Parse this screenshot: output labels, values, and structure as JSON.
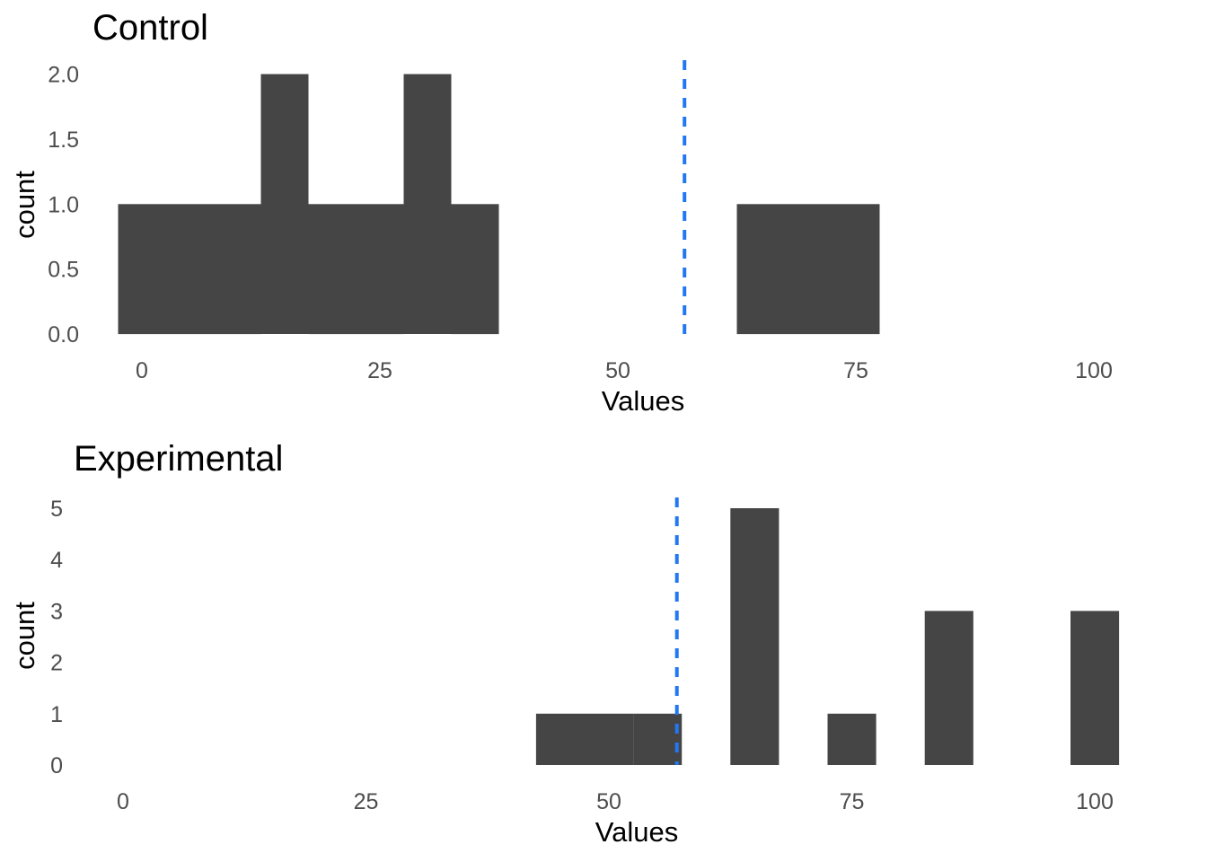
{
  "figure": {
    "background_color": "#FFFFFF",
    "bar_color": "#454545",
    "tick_label_color": "#4D4D4D",
    "title_color": "#000000",
    "vline_color": "#2277F2"
  },
  "chart_data": [
    {
      "type": "bar",
      "subtype": "histogram",
      "title": "Control",
      "xlabel": "Values",
      "ylabel": "count",
      "binwidth": 5,
      "bin_centers": [
        0,
        5,
        10,
        15,
        20,
        25,
        30,
        35,
        65,
        70,
        75
      ],
      "counts": [
        1,
        1,
        1,
        2,
        1,
        1,
        2,
        1,
        1,
        1,
        1
      ],
      "x_tick_labels": [
        "0",
        "25",
        "50",
        "75",
        "100"
      ],
      "x_tick_values": [
        0,
        25,
        50,
        75,
        100
      ],
      "y_tick_labels": [
        "0.0",
        "0.5",
        "1.0",
        "1.5",
        "2.0"
      ],
      "y_tick_values": [
        0,
        0.5,
        1,
        1.5,
        2
      ],
      "xlim": [
        -5,
        105
      ],
      "ylim": [
        0,
        2.1
      ],
      "grid": false,
      "legend": false,
      "bar_color": "#454545",
      "vline": {
        "value": 57,
        "style": "dashed",
        "color": "#2277F2"
      }
    },
    {
      "type": "bar",
      "subtype": "histogram",
      "title": "Experimental",
      "xlabel": "Values",
      "ylabel": "count",
      "binwidth": 5,
      "bin_centers": [
        45,
        50,
        55,
        65,
        75,
        85,
        100
      ],
      "counts": [
        1,
        1,
        1,
        5,
        1,
        3,
        3
      ],
      "x_tick_labels": [
        "0",
        "25",
        "50",
        "75",
        "100"
      ],
      "x_tick_values": [
        0,
        25,
        50,
        75,
        100
      ],
      "y_tick_labels": [
        "0",
        "1",
        "2",
        "3",
        "4",
        "5"
      ],
      "y_tick_values": [
        0,
        1,
        2,
        3,
        4,
        5
      ],
      "xlim": [
        -5,
        105
      ],
      "ylim": [
        0,
        5.25
      ],
      "grid": false,
      "legend": false,
      "bar_color": "#454545",
      "vline": {
        "value": 57,
        "style": "dashed",
        "color": "#2277F2"
      }
    }
  ]
}
